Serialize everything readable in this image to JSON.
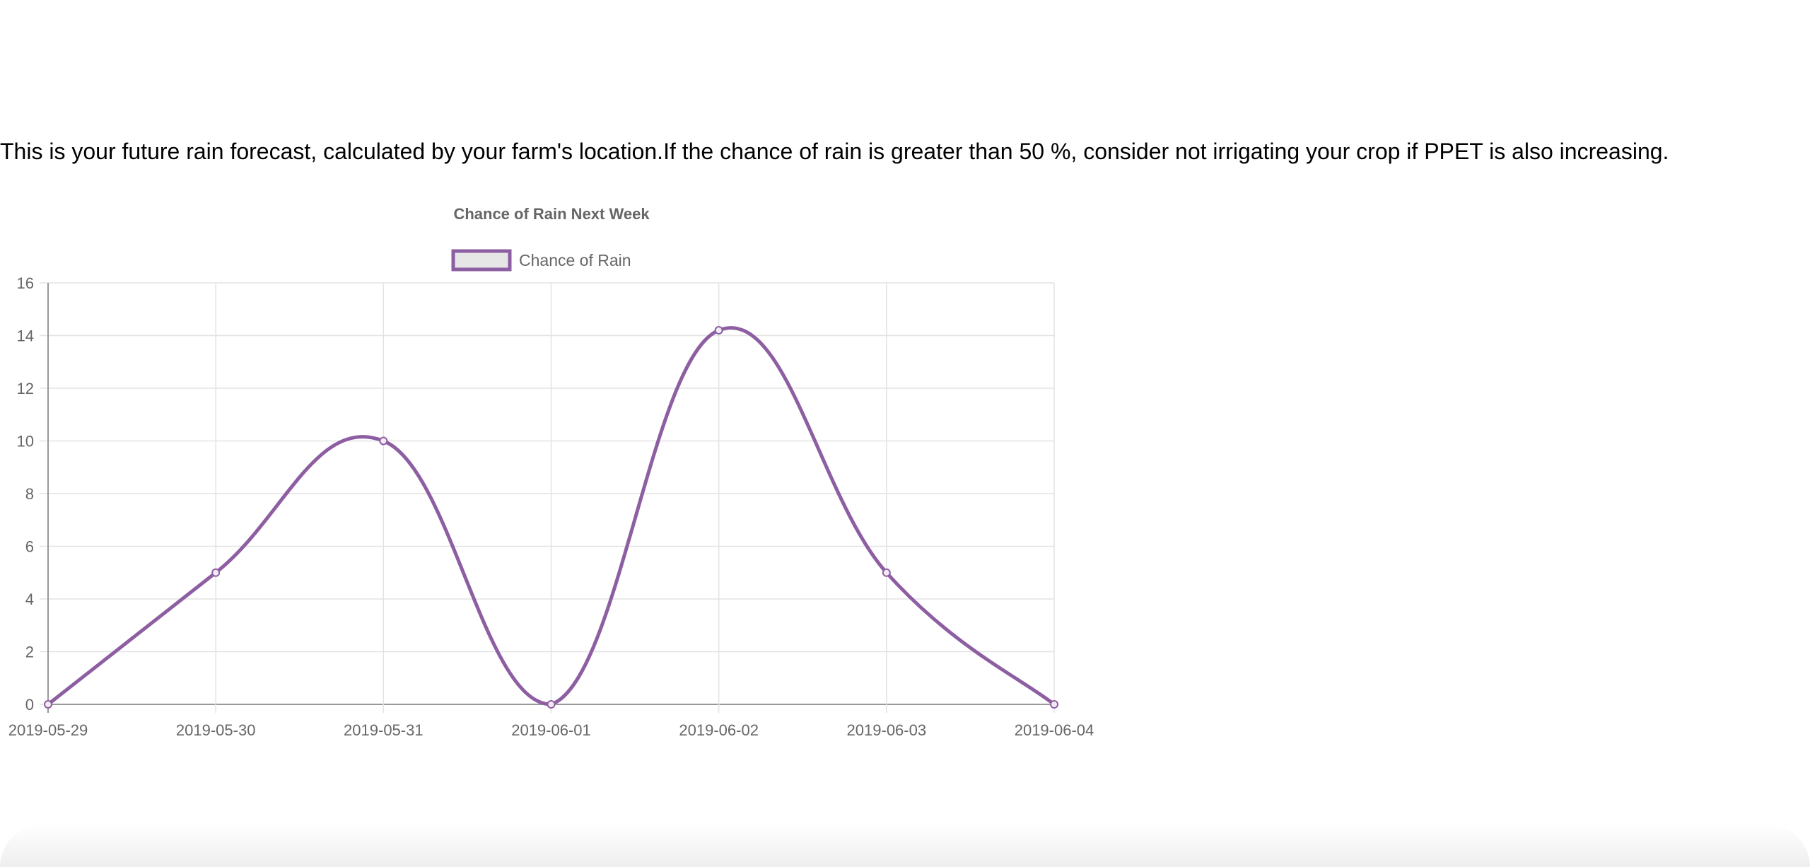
{
  "intro_text": "This is your future rain forecast, calculated by your farm's location.If the chance of rain is greater than 50 %, consider not irrigating your crop if PPET is also increasing.",
  "chart_data": {
    "type": "line",
    "title": "Chance of Rain Next Week",
    "xlabel": "",
    "ylabel": "",
    "categories": [
      "2019-05-29",
      "2019-05-30",
      "2019-05-31",
      "2019-06-01",
      "2019-06-02",
      "2019-06-03",
      "2019-06-04"
    ],
    "series": [
      {
        "name": "Chance of Rain",
        "values": [
          0,
          5,
          10,
          0,
          14.2,
          5,
          0
        ],
        "color": "#8e5ea2"
      }
    ],
    "ylim": [
      0,
      16
    ],
    "yticks": [
      0,
      2,
      4,
      6,
      8,
      10,
      12,
      14,
      16
    ],
    "grid": true,
    "legend": "top",
    "smooth": true
  }
}
